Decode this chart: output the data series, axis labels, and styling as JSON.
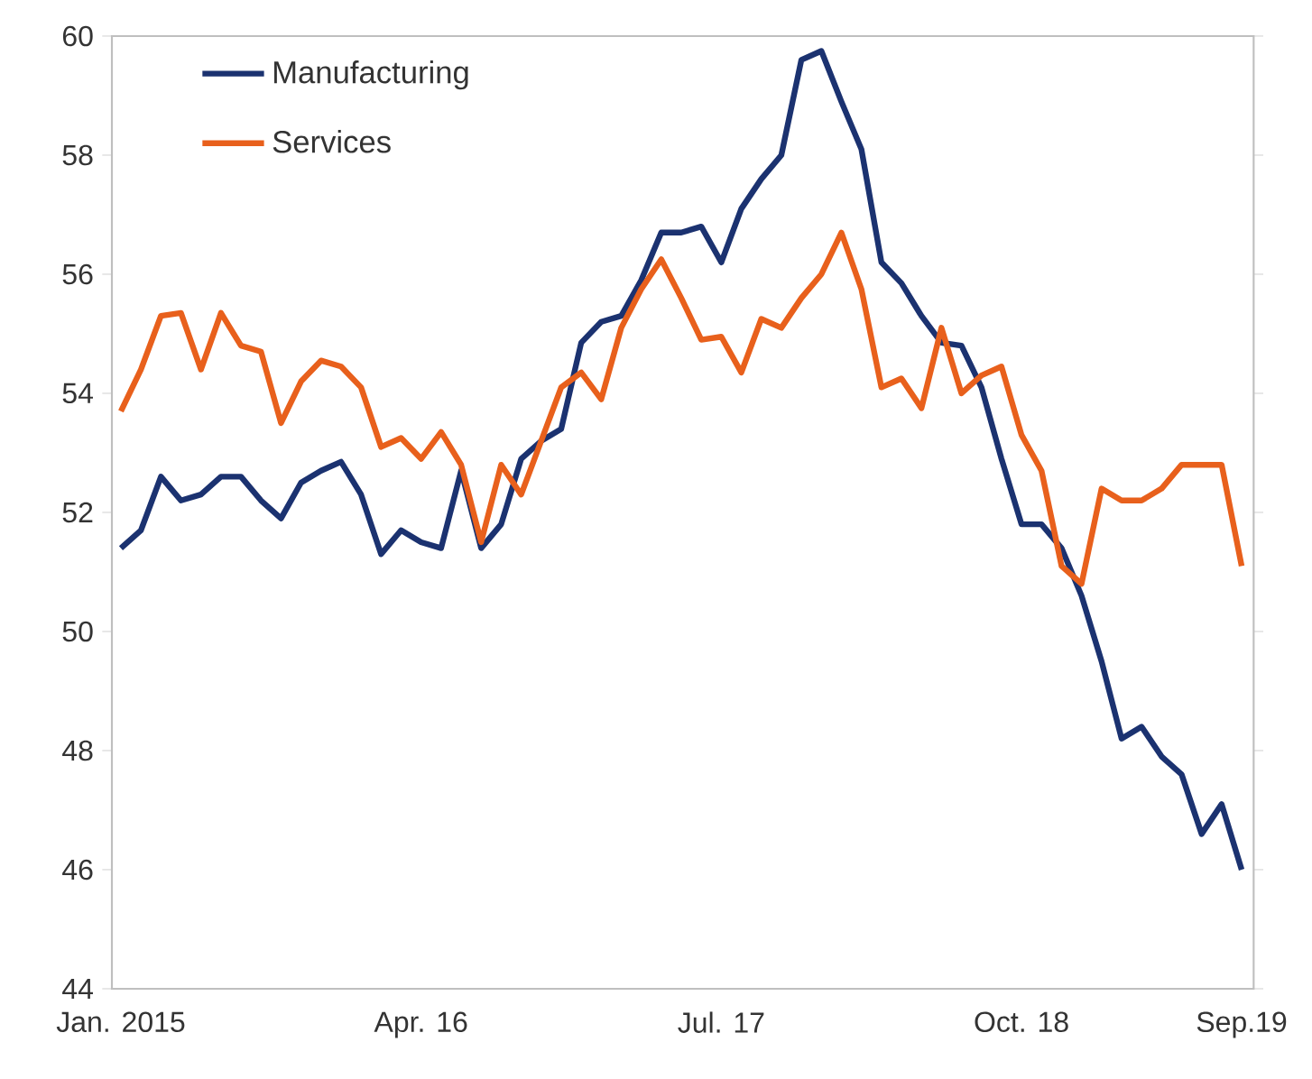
{
  "chart_data": {
    "type": "line",
    "categories": [
      "Jan. 2015",
      null,
      null,
      null,
      null,
      null,
      null,
      null,
      null,
      null,
      null,
      null,
      null,
      null,
      null,
      "Apr. 16",
      null,
      null,
      null,
      null,
      null,
      null,
      null,
      null,
      null,
      null,
      null,
      null,
      null,
      null,
      "Jul. 17",
      null,
      null,
      null,
      null,
      null,
      null,
      null,
      null,
      null,
      null,
      null,
      null,
      null,
      null,
      "Oct. 18",
      null,
      null,
      null,
      null,
      null,
      null,
      null,
      null,
      null,
      null,
      "Sep.19"
    ],
    "series": [
      {
        "name": "Manufacturing",
        "color": "#1b3270",
        "values": [
          51.4,
          51.7,
          52.6,
          52.2,
          52.3,
          52.6,
          52.6,
          52.2,
          51.9,
          52.5,
          52.7,
          52.85,
          52.3,
          51.3,
          51.7,
          51.5,
          51.4,
          52.7,
          51.4,
          51.8,
          52.9,
          53.2,
          53.4,
          54.85,
          55.2,
          55.3,
          55.9,
          56.7,
          56.7,
          56.8,
          56.2,
          57.1,
          57.6,
          58.0,
          59.6,
          59.75,
          58.9,
          58.1,
          56.2,
          55.85,
          55.3,
          54.85,
          54.8,
          54.1,
          52.9,
          51.8,
          51.8,
          51.4,
          50.6,
          49.5,
          48.2,
          48.4,
          47.9,
          47.6,
          46.6,
          47.1,
          46.0
        ]
      },
      {
        "name": "Services",
        "color": "#e8601c",
        "values": [
          53.7,
          54.4,
          55.3,
          55.35,
          54.4,
          55.35,
          54.8,
          54.7,
          53.5,
          54.2,
          54.55,
          54.45,
          54.1,
          53.1,
          53.25,
          52.9,
          53.35,
          52.8,
          51.5,
          52.8,
          52.3,
          53.2,
          54.1,
          54.35,
          53.9,
          55.1,
          55.75,
          56.25,
          55.6,
          54.9,
          54.95,
          54.35,
          55.25,
          55.1,
          55.6,
          56.0,
          56.7,
          55.75,
          54.1,
          54.25,
          53.75,
          55.1,
          54.0,
          54.3,
          54.45,
          53.3,
          52.7,
          51.1,
          50.8,
          52.4,
          52.2,
          52.2,
          52.4,
          52.8,
          52.8,
          52.8,
          51.1
        ]
      }
    ],
    "ylim": [
      44,
      60
    ],
    "yticks": [
      44,
      46,
      48,
      50,
      52,
      54,
      56,
      58,
      60
    ],
    "grid": false,
    "legend": "top left",
    "marker": "none",
    "line_style": "solid"
  }
}
